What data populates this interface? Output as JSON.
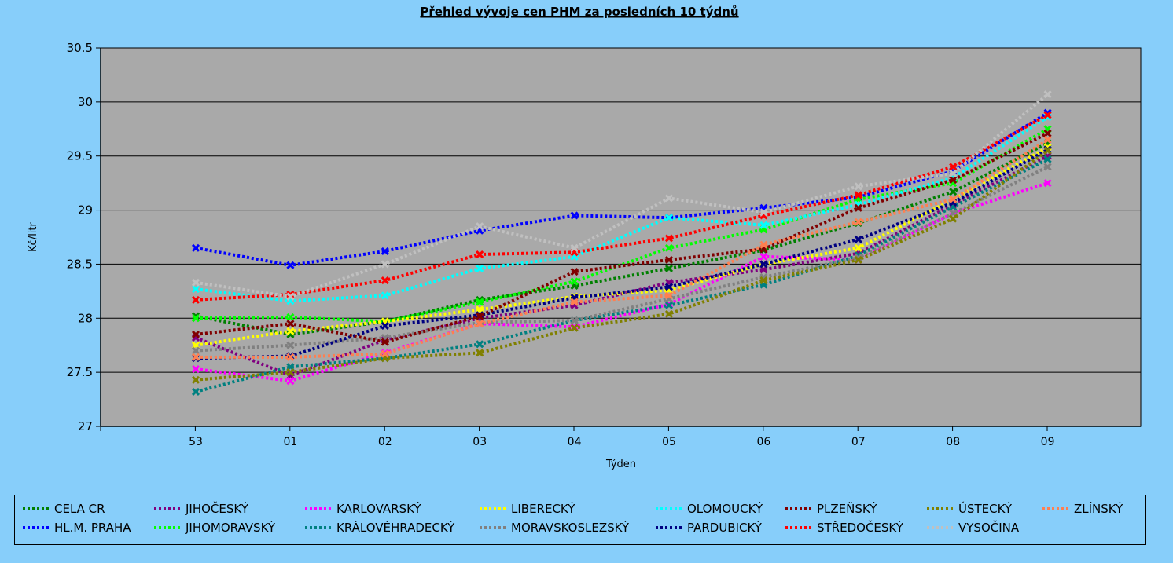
{
  "chart_data": {
    "type": "line",
    "title": "Přehled vývoje cen PHM za posledních 10 týdnů",
    "xlabel": "Týden",
    "ylabel": "Kč/litr",
    "categories": [
      "53",
      "01",
      "02",
      "03",
      "04",
      "05",
      "06",
      "07",
      "08",
      "09"
    ],
    "ylim": [
      27,
      30.5
    ],
    "yticks": [
      "27",
      "27.5",
      "28",
      "28.5",
      "29",
      "29.5",
      "30",
      "30.5"
    ],
    "grid": true,
    "legend_position": "bottom",
    "series": [
      {
        "name": "CELA CR",
        "color": "#008000",
        "values": [
          28.02,
          27.85,
          27.97,
          28.17,
          28.3,
          28.46,
          28.63,
          28.88,
          29.17,
          29.62
        ]
      },
      {
        "name": "HL.M. PRAHA",
        "color": "#0000ff",
        "values": [
          28.65,
          28.49,
          28.62,
          28.81,
          28.95,
          28.93,
          29.02,
          29.12,
          29.36,
          29.9
        ]
      },
      {
        "name": "JIHOČESKÝ",
        "color": "#800080",
        "values": [
          27.82,
          27.47,
          27.8,
          28.0,
          28.12,
          28.33,
          28.45,
          28.6,
          29.05,
          29.5
        ]
      },
      {
        "name": "JIHOMORAVSKÝ",
        "color": "#00ff00",
        "values": [
          28.0,
          28.01,
          27.97,
          28.15,
          28.34,
          28.65,
          28.82,
          29.1,
          29.25,
          29.75
        ]
      },
      {
        "name": "KARLOVARSKÝ",
        "color": "#ff00ff",
        "values": [
          27.53,
          27.42,
          27.68,
          27.95,
          27.92,
          28.13,
          28.57,
          28.54,
          28.97,
          29.25
        ]
      },
      {
        "name": "KRÁLOVÉHRADECKÝ",
        "color": "#008080",
        "values": [
          27.32,
          27.55,
          27.63,
          27.76,
          27.98,
          28.12,
          28.31,
          28.58,
          29.03,
          29.47
        ]
      },
      {
        "name": "LIBERECKÝ",
        "color": "#ffff00",
        "values": [
          27.75,
          27.88,
          27.97,
          28.08,
          28.2,
          28.26,
          28.5,
          28.65,
          29.1,
          29.58
        ]
      },
      {
        "name": "MORAVSKOSLEZSKÝ",
        "color": "#808080",
        "values": [
          27.7,
          27.75,
          27.82,
          27.96,
          27.98,
          28.18,
          28.38,
          28.56,
          28.97,
          29.4
        ]
      },
      {
        "name": "OLOMOUCKÝ",
        "color": "#00ffff",
        "values": [
          28.27,
          28.16,
          28.21,
          28.46,
          28.57,
          28.93,
          28.86,
          29.05,
          29.3,
          29.86
        ]
      },
      {
        "name": "PARDUBICKÝ",
        "color": "#000080",
        "values": [
          27.63,
          27.65,
          27.93,
          28.03,
          28.19,
          28.29,
          28.5,
          28.73,
          29.07,
          29.56
        ]
      },
      {
        "name": "PLZEŇSKÝ",
        "color": "#800000",
        "values": [
          27.85,
          27.95,
          27.78,
          28.02,
          28.43,
          28.54,
          28.64,
          29.02,
          29.28,
          29.71
        ]
      },
      {
        "name": "STŘEDOČESKÝ",
        "color": "#ff0000",
        "values": [
          28.17,
          28.22,
          28.35,
          28.59,
          28.61,
          28.74,
          28.95,
          29.14,
          29.4,
          29.88
        ]
      },
      {
        "name": "ÚSTECKÝ",
        "color": "#808000",
        "values": [
          27.43,
          27.5,
          27.63,
          27.68,
          27.91,
          28.04,
          28.35,
          28.54,
          28.92,
          29.55
        ]
      },
      {
        "name": "VYSOČINA",
        "color": "#c0c0c0",
        "values": [
          28.33,
          28.2,
          28.5,
          28.85,
          28.65,
          29.11,
          28.98,
          29.22,
          29.34,
          30.07
        ]
      },
      {
        "name": "ZLÍNSKÝ",
        "color": "#ff7f50",
        "values": [
          27.64,
          27.64,
          27.67,
          27.95,
          28.15,
          28.21,
          28.68,
          28.89,
          29.1,
          29.65
        ]
      }
    ]
  }
}
